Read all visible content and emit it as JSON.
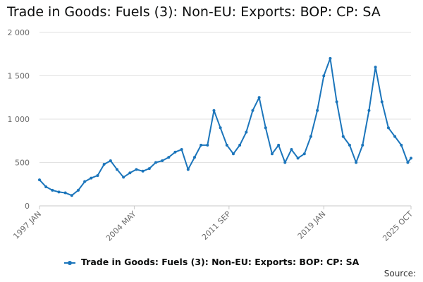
{
  "chart_data": {
    "type": "line",
    "title": "Trade in Goods: Fuels (3): Non-EU: Exports: BOP: CP: SA",
    "xlabel": "",
    "ylabel": "",
    "ylim": [
      0,
      2000
    ],
    "yticks": [
      0,
      500,
      1000,
      1500,
      2000
    ],
    "ytick_labels": [
      "0",
      "500",
      "1 000",
      "1 500",
      "2 000"
    ],
    "xticks": [
      "1997 JAN",
      "2004 MAY",
      "2011 SEP",
      "2019 JAN",
      "2025 OCT"
    ],
    "x_start": "1997 JAN",
    "x_end": "2025 OCT",
    "grid": true,
    "legend_position": "bottom",
    "colors": {
      "series": "#1b75bb",
      "grid": "#e2e2e2",
      "axis": "#6b6b6b"
    },
    "series": [
      {
        "name": "Trade in Goods: Fuels (3): Non-EU: Exports: BOP: CP: SA",
        "x": [
          "1997-01",
          "1997-07",
          "1998-01",
          "1998-07",
          "1999-01",
          "1999-07",
          "2000-01",
          "2000-07",
          "2001-01",
          "2001-07",
          "2002-01",
          "2002-07",
          "2003-01",
          "2003-07",
          "2004-01",
          "2004-07",
          "2005-01",
          "2005-07",
          "2006-01",
          "2006-07",
          "2007-01",
          "2007-07",
          "2008-01",
          "2008-07",
          "2009-01",
          "2009-07",
          "2010-01",
          "2010-07",
          "2011-01",
          "2011-07",
          "2012-01",
          "2012-07",
          "2013-01",
          "2013-07",
          "2014-01",
          "2014-07",
          "2015-01",
          "2015-07",
          "2016-01",
          "2016-07",
          "2017-01",
          "2017-07",
          "2018-01",
          "2018-07",
          "2019-01",
          "2019-07",
          "2020-01",
          "2020-07",
          "2021-01",
          "2021-07",
          "2022-01",
          "2022-07",
          "2023-01",
          "2023-07",
          "2024-01",
          "2024-07",
          "2025-01",
          "2025-07",
          "2025-10"
        ],
        "values": [
          300,
          220,
          180,
          160,
          150,
          120,
          180,
          280,
          320,
          350,
          480,
          520,
          420,
          330,
          380,
          420,
          400,
          430,
          500,
          520,
          560,
          620,
          650,
          420,
          560,
          700,
          700,
          1100,
          900,
          700,
          600,
          700,
          850,
          1100,
          1250,
          900,
          600,
          700,
          500,
          650,
          550,
          600,
          800,
          1100,
          1500,
          1700,
          1200,
          800,
          700,
          500,
          700,
          1100,
          1600,
          1200,
          900,
          800,
          700,
          500,
          550
        ]
      }
    ]
  },
  "legend": {
    "label": "Trade in Goods: Fuels (3): Non-EU: Exports: BOP: CP: SA"
  },
  "source": {
    "label": "Source:"
  }
}
